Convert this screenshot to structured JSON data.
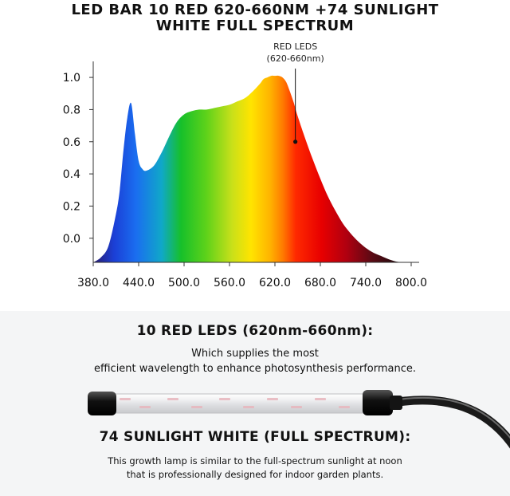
{
  "header": {
    "title_line1": "LED BAR 10 RED 620-660NM +74 SUNLIGHT",
    "title_line2": "WHITE FULL SPECTRUM"
  },
  "chart_data": {
    "type": "area",
    "title": "",
    "xlabel": "",
    "ylabel": "",
    "xlim": [
      380,
      800
    ],
    "ylim": [
      -0.15,
      1.05
    ],
    "x_ticks": [
      "380.0",
      "440.0",
      "500.0",
      "560.0",
      "620.0",
      "680.0",
      "740.0",
      "800.0"
    ],
    "y_ticks": [
      "0.0",
      "0.2",
      "0.4",
      "0.6",
      "0.8",
      "1.0"
    ],
    "annotation": {
      "line1": "RED LEDS",
      "line2": "(620-660nm)",
      "x": 647,
      "y": 0.6
    },
    "series": [
      {
        "x": [
          380,
          390,
          400,
          410,
          415,
          420,
          425,
          430,
          435,
          440,
          445,
          450,
          460,
          470,
          480,
          490,
          500,
          510,
          520,
          530,
          540,
          550,
          560,
          570,
          580,
          590,
          600,
          605,
          610,
          615,
          620,
          625,
          630,
          635,
          640,
          645,
          650,
          660,
          670,
          680,
          690,
          700,
          710,
          720,
          730,
          740,
          750,
          760,
          770,
          780,
          790,
          800
        ],
        "y": [
          -0.15,
          -0.12,
          -0.05,
          0.15,
          0.3,
          0.55,
          0.75,
          0.84,
          0.65,
          0.48,
          0.43,
          0.42,
          0.45,
          0.53,
          0.63,
          0.72,
          0.77,
          0.79,
          0.8,
          0.8,
          0.81,
          0.82,
          0.83,
          0.85,
          0.87,
          0.91,
          0.96,
          0.99,
          1.0,
          1.01,
          1.01,
          1.01,
          1.0,
          0.97,
          0.91,
          0.84,
          0.76,
          0.62,
          0.49,
          0.37,
          0.26,
          0.17,
          0.09,
          0.03,
          -0.02,
          -0.06,
          -0.09,
          -0.11,
          -0.13,
          -0.145,
          -0.15,
          -0.15
        ]
      }
    ]
  },
  "section_red": {
    "heading": "10 RED LEDS (620nm-660nm):",
    "desc_line1": "Which supplies the most",
    "desc_line2": "efficient wavelength to enhance photosynthesis performance."
  },
  "section_white": {
    "heading": "74 SUNLIGHT WHITE (FULL SPECTRUM):",
    "desc_line1": "This growth lamp is similar to the full-spectrum sunlight at noon",
    "desc_line2": "that is professionally designed for indoor garden plants."
  }
}
